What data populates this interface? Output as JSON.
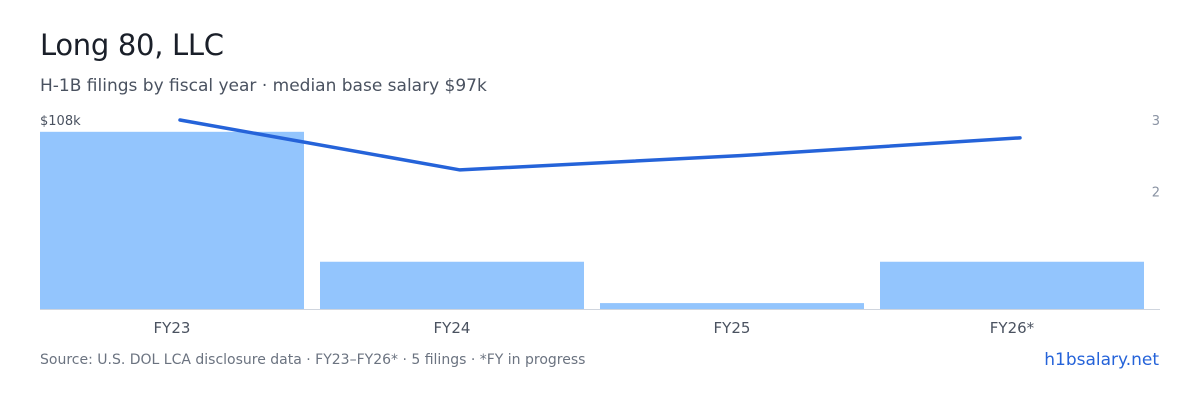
{
  "header": {
    "title": "Long 80, LLC",
    "subtitle": "H-1B filings by fiscal year · median base salary $97k"
  },
  "footer": {
    "source": "Source: U.S. DOL LCA disclosure data · FY23–FY26* · 5 filings · *FY in progress",
    "brand": "h1bsalary.net"
  },
  "colors": {
    "bar": "#93c5fd",
    "line": "#2563d9",
    "baseline": "#cfd5de",
    "tick_text": "#4a5260",
    "right_axis_text": "#8a93a3"
  },
  "chart_data": {
    "type": "bar",
    "categories": [
      "FY23",
      "FY24",
      "FY25",
      "FY26*"
    ],
    "series": [
      {
        "kind": "bar",
        "axis": "left",
        "values": [
          107,
          96,
          92.5,
          96
        ]
      },
      {
        "kind": "line",
        "axis": "right",
        "values": [
          3,
          2.3,
          2.5,
          2.75
        ]
      }
    ],
    "left_axis": {
      "ticks": [
        "$108k"
      ],
      "range": [
        92,
        108
      ]
    },
    "right_axis": {
      "ticks": [
        "3",
        "2"
      ],
      "range": [
        0.35,
        3
      ]
    },
    "grid": false,
    "legend": "none"
  }
}
